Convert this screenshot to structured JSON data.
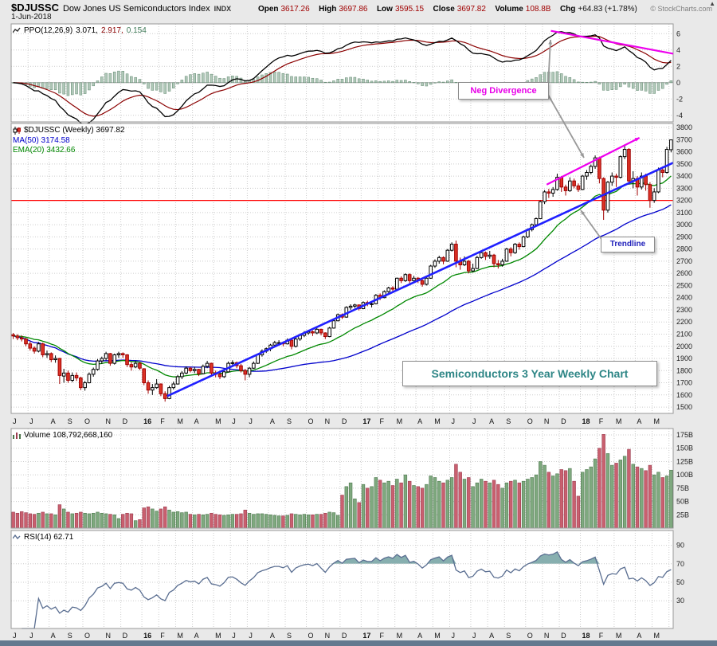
{
  "header": {
    "symbol": "$DJUSSC",
    "name": "Dow Jones US Semiconductors Index",
    "exchange": "INDX",
    "date": "1-Jun-2018",
    "copyright": "© StockCharts.com",
    "scroll_arrow": "▲",
    "quote": {
      "open_label": "Open",
      "open": "3617.26",
      "high_label": "High",
      "high": "3697.86",
      "low_label": "Low",
      "low": "3595.15",
      "close_label": "Close",
      "close": "3697.82",
      "volume_label": "Volume",
      "volume": "108.8B",
      "chg_label": "Chg",
      "chg": "+64.83 (+1.78%)"
    }
  },
  "legends": {
    "ppo": {
      "label": "PPO(12,26,9)",
      "v1": "3.071,",
      "v2": "2.917,",
      "v3": "0.154"
    },
    "price": {
      "symbol": "$DJUSSC (Weekly) 3697.82",
      "ma": "MA(50) 3174.58",
      "ema": "EMA(20) 3432.66"
    },
    "volume": "Volume 108,792,668,160",
    "rsi": "RSI(14) 62.71"
  },
  "annotations": {
    "neg_divergence": "Neg Divergence",
    "trendline": "Trendline",
    "watermark": "Semiconductors 3 Year Weekly Chart"
  },
  "colors": {
    "up": "#000000",
    "up_fill": "#ffffff",
    "down": "#a00000",
    "down_fill": "#dd3326",
    "ma50": "#0000cc",
    "ema20": "#008800",
    "trendline": "#2020ff",
    "red_line": "#ff0000",
    "magenta": "#ee00ee",
    "ppo_line": "#000000",
    "ppo_signal": "#8b0000",
    "hist_fill": "#b1c8b9",
    "hist_stroke": "#60886f",
    "vol_up": "#7fa97f",
    "vol_up_stroke": "#4d774d",
    "vol_down": "#c9606f",
    "vol_down_stroke": "#9c3c50",
    "rsi": "#5a6e91",
    "rsi_fill": "#7aa6a6",
    "grid": "#cccccc",
    "panel_border": "#999999",
    "bg": "#e9e9e9",
    "quote_value": "#a00000",
    "annotation_magenta": "#e800e8",
    "annotation_blue": "#2222bb",
    "annotation_teal": "#2e8686",
    "gray_arrow": "#999999"
  },
  "chart_data": {
    "type": "candlestick",
    "timeframe": "weekly",
    "title": "Dow Jones US Semiconductors Index ($DJUSSC) 3 Year Weekly Chart",
    "start": "Jun 2015",
    "end": "1-Jun-2018",
    "months": [
      [
        "J",
        4
      ],
      [
        "J",
        5
      ],
      [
        "A",
        4
      ],
      [
        "S",
        4
      ],
      [
        "O",
        5
      ],
      [
        "N",
        4
      ],
      [
        "D",
        5
      ],
      [
        "16",
        4
      ],
      [
        "F",
        4
      ],
      [
        "M",
        4
      ],
      [
        "A",
        5
      ],
      [
        "M",
        4
      ],
      [
        "J",
        4
      ],
      [
        "J",
        5
      ],
      [
        "A",
        4
      ],
      [
        "S",
        5
      ],
      [
        "O",
        4
      ],
      [
        "N",
        4
      ],
      [
        "D",
        5
      ],
      [
        "17",
        4
      ],
      [
        "F",
        4
      ],
      [
        "M",
        5
      ],
      [
        "A",
        4
      ],
      [
        "M",
        4
      ],
      [
        "J",
        5
      ],
      [
        "J",
        4
      ],
      [
        "A",
        4
      ],
      [
        "S",
        5
      ],
      [
        "O",
        4
      ],
      [
        "N",
        4
      ],
      [
        "D",
        5
      ],
      [
        "18",
        4
      ],
      [
        "F",
        4
      ],
      [
        "M",
        5
      ],
      [
        "A",
        4
      ],
      [
        "M",
        4
      ]
    ],
    "candles_format": [
      "open",
      "high",
      "low",
      "close",
      "volume_billions"
    ],
    "candles": [
      [
        2095,
        2110,
        2060,
        2085,
        30
      ],
      [
        2085,
        2100,
        2050,
        2070,
        28
      ],
      [
        2070,
        2090,
        2040,
        2060,
        31
      ],
      [
        2060,
        2070,
        2000,
        2020,
        29
      ],
      [
        2020,
        2040,
        1965,
        1985,
        27
      ],
      [
        1985,
        2000,
        1940,
        1960,
        26
      ],
      [
        1960,
        2035,
        1950,
        2020,
        28
      ],
      [
        2020,
        2030,
        1910,
        1930,
        30
      ],
      [
        1930,
        1965,
        1905,
        1940,
        27
      ],
      [
        1940,
        1950,
        1870,
        1890,
        27
      ],
      [
        1890,
        1925,
        1865,
        1900,
        25
      ],
      [
        1900,
        1905,
        1690,
        1760,
        44
      ],
      [
        1755,
        1815,
        1700,
        1780,
        36
      ],
      [
        1780,
        1800,
        1700,
        1720,
        30
      ],
      [
        1720,
        1785,
        1705,
        1760,
        27
      ],
      [
        1760,
        1785,
        1715,
        1740,
        28
      ],
      [
        1740,
        1750,
        1640,
        1660,
        30
      ],
      [
        1660,
        1715,
        1635,
        1700,
        28
      ],
      [
        1700,
        1785,
        1695,
        1770,
        27
      ],
      [
        1770,
        1825,
        1750,
        1810,
        28
      ],
      [
        1810,
        1895,
        1800,
        1880,
        30
      ],
      [
        1880,
        1915,
        1855,
        1900,
        28
      ],
      [
        1900,
        1955,
        1885,
        1940,
        27
      ],
      [
        1940,
        1945,
        1840,
        1860,
        26
      ],
      [
        1860,
        1940,
        1850,
        1930,
        25
      ],
      [
        1930,
        1955,
        1905,
        1940,
        18
      ],
      [
        1940,
        1950,
        1905,
        1930,
        26
      ],
      [
        1930,
        1935,
        1830,
        1850,
        28
      ],
      [
        1850,
        1870,
        1800,
        1830,
        27
      ],
      [
        1830,
        1880,
        1820,
        1860,
        14
      ],
      [
        1860,
        1870,
        1805,
        1820,
        16
      ],
      [
        1815,
        1820,
        1680,
        1700,
        38
      ],
      [
        1700,
        1720,
        1610,
        1640,
        40
      ],
      [
        1640,
        1690,
        1600,
        1660,
        36
      ],
      [
        1660,
        1730,
        1650,
        1690,
        32
      ],
      [
        1690,
        1695,
        1590,
        1610,
        36
      ],
      [
        1610,
        1630,
        1545,
        1570,
        40
      ],
      [
        1570,
        1675,
        1565,
        1660,
        34
      ],
      [
        1660,
        1710,
        1645,
        1690,
        30
      ],
      [
        1690,
        1765,
        1685,
        1750,
        31
      ],
      [
        1750,
        1795,
        1730,
        1780,
        29
      ],
      [
        1780,
        1835,
        1770,
        1820,
        30
      ],
      [
        1820,
        1830,
        1785,
        1800,
        26
      ],
      [
        1800,
        1830,
        1780,
        1810,
        25
      ],
      [
        1810,
        1815,
        1755,
        1775,
        26
      ],
      [
        1775,
        1850,
        1770,
        1835,
        25
      ],
      [
        1835,
        1880,
        1820,
        1860,
        26
      ],
      [
        1860,
        1865,
        1765,
        1780,
        28
      ],
      [
        1780,
        1800,
        1745,
        1770,
        26
      ],
      [
        1770,
        1785,
        1730,
        1750,
        25
      ],
      [
        1750,
        1805,
        1740,
        1790,
        24
      ],
      [
        1790,
        1875,
        1785,
        1860,
        25
      ],
      [
        1860,
        1885,
        1845,
        1865,
        26
      ],
      [
        1865,
        1875,
        1820,
        1840,
        26
      ],
      [
        1840,
        1855,
        1785,
        1800,
        27
      ],
      [
        1800,
        1815,
        1720,
        1770,
        34
      ],
      [
        1770,
        1830,
        1745,
        1820,
        28
      ],
      [
        1820,
        1875,
        1815,
        1860,
        26
      ],
      [
        1860,
        1940,
        1855,
        1930,
        27
      ],
      [
        1930,
        1975,
        1915,
        1960,
        27
      ],
      [
        1960,
        1990,
        1945,
        1980,
        26
      ],
      [
        1980,
        2020,
        1960,
        2010,
        25
      ],
      [
        2010,
        2045,
        2000,
        2030,
        24
      ],
      [
        2030,
        2050,
        2010,
        2030,
        23
      ],
      [
        2030,
        2040,
        2000,
        2020,
        23
      ],
      [
        2020,
        2065,
        2015,
        2050,
        24
      ],
      [
        2050,
        2055,
        1975,
        2000,
        27
      ],
      [
        2000,
        2075,
        1990,
        2060,
        26
      ],
      [
        2060,
        2105,
        2045,
        2090,
        25
      ],
      [
        2090,
        2125,
        2075,
        2110,
        26
      ],
      [
        2110,
        2135,
        2095,
        2120,
        25
      ],
      [
        2120,
        2130,
        2085,
        2110,
        25
      ],
      [
        2110,
        2155,
        2100,
        2140,
        26
      ],
      [
        2140,
        2145,
        2090,
        2110,
        26
      ],
      [
        2110,
        2115,
        2060,
        2080,
        28
      ],
      [
        2080,
        2160,
        2075,
        2150,
        30
      ],
      [
        2150,
        2220,
        2145,
        2210,
        29
      ],
      [
        2210,
        2270,
        2205,
        2260,
        24
      ],
      [
        2260,
        2270,
        2225,
        2240,
        62
      ],
      [
        2240,
        2330,
        2235,
        2320,
        78
      ],
      [
        2320,
        2345,
        2300,
        2330,
        85
      ],
      [
        2330,
        2350,
        2315,
        2340,
        55
      ],
      [
        2340,
        2345,
        2295,
        2310,
        48
      ],
      [
        2310,
        2370,
        2305,
        2360,
        82
      ],
      [
        2360,
        2375,
        2330,
        2350,
        75
      ],
      [
        2350,
        2365,
        2320,
        2350,
        78
      ],
      [
        2350,
        2430,
        2345,
        2420,
        95
      ],
      [
        2420,
        2435,
        2380,
        2400,
        90
      ],
      [
        2400,
        2460,
        2395,
        2450,
        85
      ],
      [
        2450,
        2490,
        2440,
        2480,
        88
      ],
      [
        2480,
        2495,
        2450,
        2470,
        80
      ],
      [
        2470,
        2565,
        2465,
        2560,
        92
      ],
      [
        2560,
        2575,
        2520,
        2540,
        85
      ],
      [
        2540,
        2600,
        2530,
        2590,
        100
      ],
      [
        2590,
        2600,
        2520,
        2540,
        88
      ],
      [
        2540,
        2580,
        2525,
        2560,
        80
      ],
      [
        2560,
        2570,
        2520,
        2540,
        78
      ],
      [
        2540,
        2550,
        2490,
        2510,
        75
      ],
      [
        2510,
        2575,
        2500,
        2560,
        82
      ],
      [
        2560,
        2670,
        2555,
        2660,
        98
      ],
      [
        2660,
        2715,
        2645,
        2700,
        95
      ],
      [
        2700,
        2745,
        2680,
        2730,
        88
      ],
      [
        2730,
        2740,
        2675,
        2700,
        85
      ],
      [
        2700,
        2800,
        2695,
        2790,
        90
      ],
      [
        2790,
        2855,
        2780,
        2840,
        95
      ],
      [
        2840,
        2870,
        2650,
        2700,
        120
      ],
      [
        2700,
        2730,
        2630,
        2670,
        105
      ],
      [
        2670,
        2740,
        2660,
        2700,
        92
      ],
      [
        2700,
        2710,
        2600,
        2620,
        95
      ],
      [
        2620,
        2680,
        2610,
        2640,
        78
      ],
      [
        2640,
        2745,
        2635,
        2730,
        85
      ],
      [
        2730,
        2790,
        2720,
        2770,
        92
      ],
      [
        2770,
        2780,
        2710,
        2740,
        88
      ],
      [
        2740,
        2785,
        2720,
        2750,
        85
      ],
      [
        2750,
        2760,
        2650,
        2680,
        90
      ],
      [
        2680,
        2710,
        2640,
        2670,
        82
      ],
      [
        2670,
        2720,
        2655,
        2700,
        75
      ],
      [
        2700,
        2810,
        2695,
        2800,
        85
      ],
      [
        2800,
        2815,
        2740,
        2770,
        88
      ],
      [
        2770,
        2850,
        2760,
        2840,
        90
      ],
      [
        2840,
        2855,
        2795,
        2820,
        85
      ],
      [
        2820,
        2910,
        2815,
        2900,
        88
      ],
      [
        2900,
        2970,
        2890,
        2960,
        92
      ],
      [
        2960,
        3010,
        2945,
        3000,
        95
      ],
      [
        3000,
        3060,
        2990,
        3050,
        100
      ],
      [
        3050,
        3200,
        3045,
        3190,
        125
      ],
      [
        3190,
        3285,
        3170,
        3270,
        118
      ],
      [
        3270,
        3295,
        3220,
        3260,
        105
      ],
      [
        3260,
        3310,
        3230,
        3290,
        98
      ],
      [
        3290,
        3420,
        3280,
        3390,
        102
      ],
      [
        3390,
        3400,
        3270,
        3310,
        110
      ],
      [
        3310,
        3330,
        3240,
        3280,
        108
      ],
      [
        3280,
        3390,
        3270,
        3360,
        112
      ],
      [
        3360,
        3380,
        3300,
        3320,
        88
      ],
      [
        3320,
        3340,
        3270,
        3290,
        60
      ],
      [
        3290,
        3410,
        3285,
        3400,
        105
      ],
      [
        3400,
        3450,
        3370,
        3430,
        110
      ],
      [
        3430,
        3495,
        3415,
        3480,
        115
      ],
      [
        3480,
        3570,
        3460,
        3550,
        130
      ],
      [
        3550,
        3560,
        3340,
        3380,
        150
      ],
      [
        3380,
        3390,
        3040,
        3120,
        176
      ],
      [
        3120,
        3360,
        3100,
        3350,
        140
      ],
      [
        3350,
        3430,
        3320,
        3400,
        118
      ],
      [
        3400,
        3420,
        3310,
        3390,
        122
      ],
      [
        3390,
        3570,
        3380,
        3560,
        128
      ],
      [
        3560,
        3660,
        3540,
        3620,
        135
      ],
      [
        3620,
        3630,
        3330,
        3360,
        148
      ],
      [
        3360,
        3440,
        3300,
        3380,
        120
      ],
      [
        3380,
        3400,
        3240,
        3310,
        115
      ],
      [
        3310,
        3430,
        3290,
        3400,
        112
      ],
      [
        3400,
        3420,
        3280,
        3330,
        108
      ],
      [
        3330,
        3350,
        3140,
        3200,
        118
      ],
      [
        3200,
        3300,
        3180,
        3270,
        100
      ],
      [
        3270,
        3470,
        3260,
        3450,
        105
      ],
      [
        3450,
        3480,
        3390,
        3430,
        95
      ],
      [
        3430,
        3640,
        3420,
        3620,
        98
      ],
      [
        3617.26,
        3697.86,
        3595.15,
        3697.82,
        108.8
      ]
    ],
    "panels": {
      "ppo": {
        "params": [
          12,
          26,
          9
        ],
        "range": [
          -4.8,
          7.2
        ],
        "yticks": [
          6,
          4,
          2,
          0,
          -2,
          -4
        ],
        "last": {
          "ppo": 3.071,
          "signal": 2.917,
          "hist": 0.154
        },
        "divergence_line": {
          "w1": 128,
          "p1": 6.35,
          "w2": 157,
          "p2": 3.55
        }
      },
      "price": {
        "range": [
          1448,
          3833
        ],
        "yticks": [
          3800,
          3700,
          3600,
          3500,
          3400,
          3300,
          3200,
          3100,
          3000,
          2900,
          2800,
          2700,
          2600,
          2500,
          2400,
          2300,
          2200,
          2100,
          2000,
          1900,
          1800,
          1700,
          1600,
          1500
        ],
        "red_line": 3200,
        "trendline": {
          "w1": 37,
          "p1": 1590,
          "w2": 157,
          "p2": 3510
        },
        "divergence_line": {
          "w1": 127,
          "p1": 3330,
          "w2": 149,
          "p2": 3715
        },
        "ma50_last": 3174.58,
        "ema20_last": 3432.66,
        "close_last": 3697.82
      },
      "volume": {
        "range": [
          0,
          187
        ],
        "yticks": [
          175,
          150,
          125,
          100,
          75,
          50,
          25
        ],
        "ytick_suffix": "B",
        "last_billions": 108.8,
        "last_full": "108,792,668,160"
      },
      "rsi": {
        "params": 14,
        "range": [
          0,
          106
        ],
        "yticks": [
          90,
          70,
          50,
          30
        ],
        "overbought": 70,
        "oversold": 30,
        "last": 62.71
      }
    }
  }
}
